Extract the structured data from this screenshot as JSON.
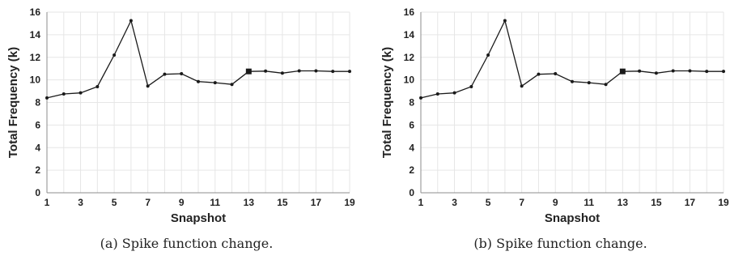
{
  "charts": [
    {
      "caption": "(a) Spike function change.",
      "chart_data": {
        "type": "line",
        "title": "",
        "xlabel": "Snapshot",
        "ylabel": "Total Frequency (k)",
        "x": [
          1,
          2,
          3,
          4,
          5,
          6,
          7,
          8,
          9,
          10,
          11,
          12,
          13,
          14,
          15,
          16,
          17,
          18,
          19
        ],
        "values": [
          8.4,
          8.75,
          8.85,
          9.4,
          12.2,
          15.25,
          9.45,
          10.5,
          10.55,
          9.85,
          9.75,
          9.6,
          10.75,
          10.78,
          10.6,
          10.8,
          10.8,
          10.75,
          10.75
        ],
        "highlight_x": 13,
        "xticks": [
          1,
          3,
          5,
          7,
          9,
          11,
          13,
          15,
          17,
          19
        ],
        "yticks": [
          0,
          2,
          4,
          6,
          8,
          10,
          12,
          14,
          16
        ],
        "xlim": [
          1,
          19
        ],
        "ylim": [
          0,
          16
        ],
        "grid": true,
        "colors": {
          "line": "#1a1a1a",
          "grid": "#e6e6e6",
          "axis": "#8c8c8c"
        }
      }
    },
    {
      "caption": "(b) Spike function change.",
      "chart_data": {
        "type": "line",
        "title": "",
        "xlabel": "Snapshot",
        "ylabel": "Total Frequency (k)",
        "x": [
          1,
          2,
          3,
          4,
          5,
          6,
          7,
          8,
          9,
          10,
          11,
          12,
          13,
          14,
          15,
          16,
          17,
          18,
          19
        ],
        "values": [
          8.4,
          8.75,
          8.85,
          9.4,
          12.2,
          15.25,
          9.45,
          10.5,
          10.55,
          9.85,
          9.75,
          9.6,
          10.75,
          10.78,
          10.6,
          10.8,
          10.8,
          10.75,
          10.75
        ],
        "highlight_x": 13,
        "xticks": [
          1,
          3,
          5,
          7,
          9,
          11,
          13,
          15,
          17,
          19
        ],
        "yticks": [
          0,
          2,
          4,
          6,
          8,
          10,
          12,
          14,
          16
        ],
        "xlim": [
          1,
          19
        ],
        "ylim": [
          0,
          16
        ],
        "grid": true,
        "colors": {
          "line": "#1a1a1a",
          "grid": "#e6e6e6",
          "axis": "#8c8c8c"
        }
      }
    }
  ]
}
